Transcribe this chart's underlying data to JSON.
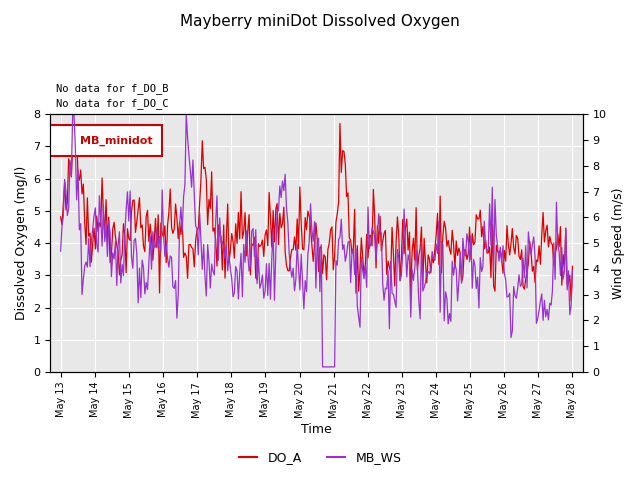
{
  "title": "Mayberry miniDot Dissolved Oxygen",
  "xlabel": "Time",
  "ylabel_left": "Dissolved Oxygen (mg/l)",
  "ylabel_right": "Wind Speed (m/s)",
  "text_top_left_line1": "No data for f_DO_B",
  "text_top_left_line2": "No data for f_DO_C",
  "legend_label_DO": "DO_A",
  "legend_label_WS": "MB_WS",
  "legend_box_label": "MB_minidot",
  "color_DO": "#dd0000",
  "color_WS": "#9933cc",
  "ylim_left": [
    0.0,
    8.0
  ],
  "ylim_right": [
    0.0,
    10.0
  ],
  "yticks_left": [
    0.0,
    1.0,
    2.0,
    3.0,
    4.0,
    5.0,
    6.0,
    7.0,
    8.0
  ],
  "yticks_right": [
    0.0,
    1.0,
    2.0,
    3.0,
    4.0,
    5.0,
    6.0,
    7.0,
    8.0,
    9.0,
    10.0
  ],
  "xtick_labels": [
    "May 13",
    "May 14",
    "May 15",
    "May 16",
    "May 17",
    "May 18",
    "May 19",
    "May 20",
    "May 21",
    "May 22",
    "May 23",
    "May 24",
    "May 25",
    "May 26",
    "May 27",
    "May 28"
  ],
  "bg_color": "#e8e8e8",
  "fig_bg": "#ffffff",
  "seed": 42
}
